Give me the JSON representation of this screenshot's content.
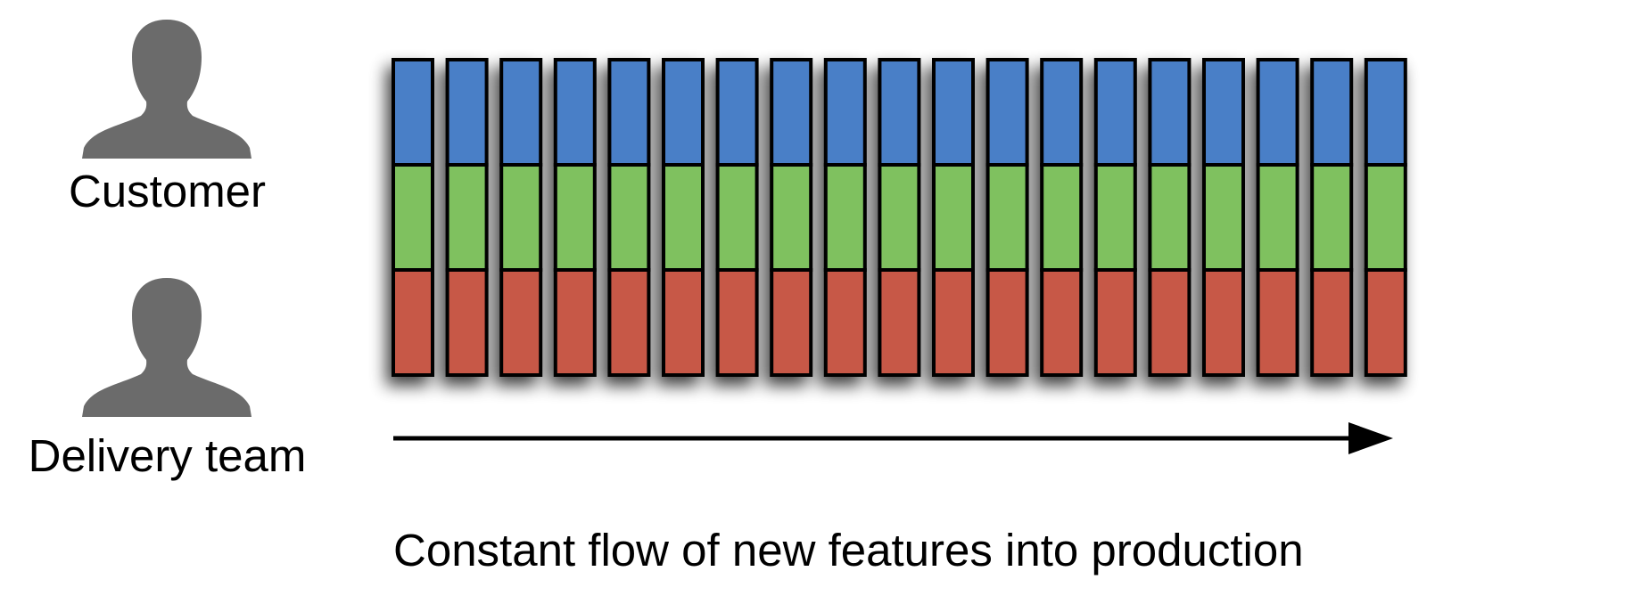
{
  "roles": {
    "customer": "Customer",
    "delivery_team": "Delivery team"
  },
  "flow": {
    "caption": "Constant flow of new features into production"
  },
  "features": {
    "count": 19,
    "layers": [
      "blue",
      "green",
      "red"
    ]
  },
  "colors": {
    "blue": "#4a7fc7",
    "green": "#7fc15f",
    "red": "#c75846",
    "person": "#6b6b6b",
    "outline": "#000000"
  },
  "icons": {
    "customer": "person-silhouette-icon",
    "delivery_team": "person-silhouette-icon"
  }
}
